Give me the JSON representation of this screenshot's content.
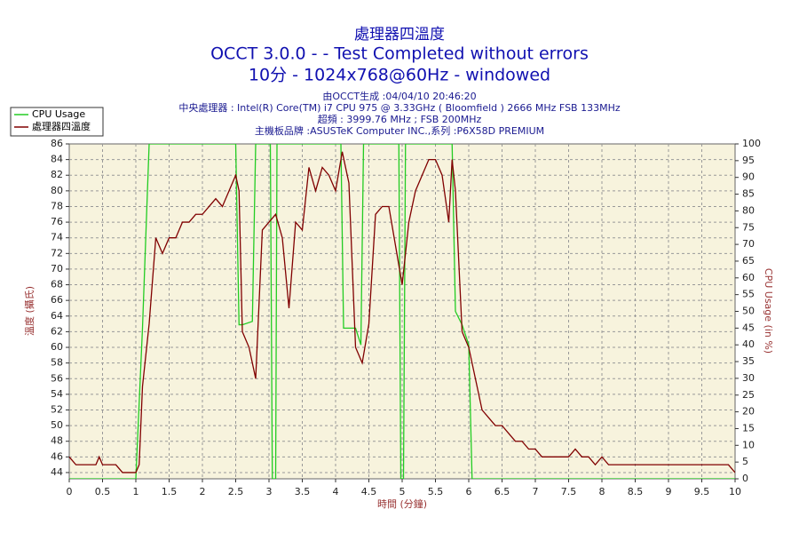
{
  "chart_data": {
    "type": "line",
    "title": "處理器四溫度",
    "subtitle": [
      "OCCT 3.0.0 -  - Test Completed without errors",
      "10分 - 1024x768@60Hz - windowed"
    ],
    "info": [
      "由OCCT生成 :04/04/10 20:46:20",
      "中央處理器 : Intel(R) Core(TM) i7 CPU 975 @ 3.33GHz ( Bloomfield ) 2666 MHz FSB 133MHz",
      "超頻 : 3999.76 MHz ; FSB 200MHz",
      "主機板品牌 :ASUSTeK Computer INC.,系列 :P6X58D PREMIUM"
    ],
    "x_label": "時間 (分鐘)",
    "y_label": "溫度 (攝氏)",
    "y2_label": "CPU Usage (in %)",
    "xlim": [
      0,
      10
    ],
    "xticks": [
      0,
      0.5,
      1,
      1.5,
      2,
      2.5,
      3,
      3.5,
      4,
      4.5,
      5,
      5.5,
      6,
      6.5,
      7,
      7.5,
      8,
      8.5,
      9,
      9.5,
      10
    ],
    "ylim": [
      43.2,
      86
    ],
    "yticks": [
      44,
      46,
      48,
      50,
      52,
      54,
      56,
      58,
      60,
      62,
      64,
      66,
      68,
      70,
      72,
      74,
      76,
      78,
      80,
      82,
      84,
      86
    ],
    "y2lim": [
      0,
      100
    ],
    "y2ticks": [
      0,
      5,
      10,
      15,
      20,
      25,
      30,
      35,
      40,
      45,
      50,
      55,
      60,
      65,
      70,
      75,
      80,
      85,
      90,
      95,
      100
    ],
    "grid": true,
    "legend": "top-left",
    "series": [
      {
        "name": "CPU Usage",
        "color": "#22cc22",
        "axis": "y2",
        "x": [
          0,
          1.0,
          1.1,
          1.2,
          2.5,
          2.55,
          2.6,
          2.75,
          2.8,
          3.02,
          3.05,
          3.1,
          3.12,
          4.08,
          4.12,
          4.3,
          4.38,
          4.42,
          4.95,
          4.98,
          5.02,
          5.05,
          5.75,
          5.8,
          5.9,
          6.0,
          6.05,
          10
        ],
        "values": [
          0,
          0,
          45,
          100,
          100,
          46,
          46,
          47,
          100,
          100,
          0,
          0,
          100,
          100,
          45,
          45,
          40,
          100,
          100,
          0,
          0,
          100,
          100,
          50,
          46,
          40,
          0,
          0
        ]
      },
      {
        "name": "處理器四溫度",
        "color": "#800000",
        "x": [
          0,
          0.1,
          0.2,
          0.3,
          0.4,
          0.45,
          0.5,
          0.6,
          0.7,
          0.8,
          0.9,
          1.0,
          1.05,
          1.1,
          1.2,
          1.3,
          1.4,
          1.5,
          1.6,
          1.7,
          1.8,
          1.9,
          2.0,
          2.1,
          2.2,
          2.3,
          2.4,
          2.5,
          2.55,
          2.6,
          2.7,
          2.8,
          2.9,
          3.0,
          3.1,
          3.2,
          3.3,
          3.4,
          3.5,
          3.6,
          3.7,
          3.8,
          3.9,
          4.0,
          4.1,
          4.2,
          4.3,
          4.4,
          4.5,
          4.6,
          4.7,
          4.8,
          4.9,
          5.0,
          5.1,
          5.2,
          5.3,
          5.4,
          5.5,
          5.6,
          5.7,
          5.75,
          5.8,
          5.9,
          6.0,
          6.1,
          6.2,
          6.3,
          6.4,
          6.5,
          6.6,
          6.7,
          6.8,
          6.9,
          7.0,
          7.1,
          7.2,
          7.5,
          7.6,
          7.7,
          7.8,
          7.9,
          8.0,
          8.1,
          8.5,
          9,
          9.5,
          9.9,
          10
        ],
        "values": [
          46,
          45,
          45,
          45,
          45,
          46,
          45,
          45,
          45,
          44,
          44,
          44,
          45,
          55,
          63,
          74,
          72,
          74,
          74,
          76,
          76,
          77,
          77,
          78,
          79,
          78,
          80,
          82,
          80,
          62,
          60,
          56,
          75,
          76,
          77,
          74,
          65,
          76,
          75,
          83,
          80,
          83,
          82,
          80,
          85,
          81,
          60,
          58,
          63,
          77,
          78,
          78,
          73,
          68,
          76,
          80,
          82,
          84,
          84,
          82,
          76,
          84,
          80,
          62,
          60,
          56,
          52,
          51,
          50,
          50,
          49,
          48,
          48,
          47,
          47,
          46,
          46,
          46,
          47,
          46,
          46,
          45,
          46,
          45,
          45,
          45,
          45,
          45,
          44
        ]
      }
    ]
  }
}
